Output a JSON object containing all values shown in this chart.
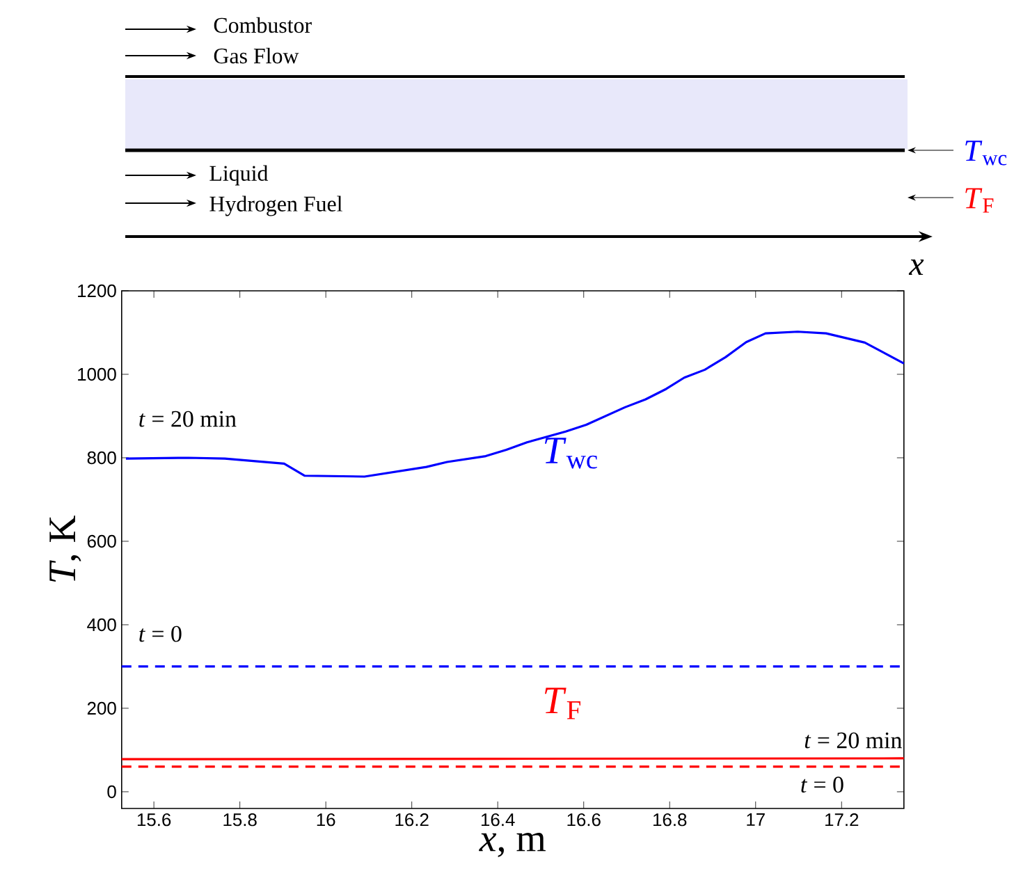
{
  "chart_data": {
    "type": "line",
    "xlabel": "*x*, m",
    "ylabel": "*T*, K",
    "xlim": [
      15.525,
      17.345
    ],
    "ylim": [
      -40,
      1200
    ],
    "xticks": [
      15.6,
      15.8,
      16,
      16.2,
      16.4,
      16.6,
      16.8,
      17,
      17.2
    ],
    "yticks": [
      0,
      200,
      400,
      600,
      800,
      1000,
      1200
    ],
    "series": [
      {
        "color": "#0000ff",
        "line_style": "solid",
        "x": [
          15.535,
          15.681,
          15.765,
          15.903,
          15.951,
          16.09,
          16.234,
          16.282,
          16.372,
          16.42,
          16.468,
          16.558,
          16.606,
          16.696,
          16.744,
          16.792,
          16.834,
          16.882,
          16.93,
          16.978,
          17.023,
          17.098,
          17.164,
          17.254,
          17.345
        ],
        "values": [
          798,
          800,
          798,
          786,
          757,
          755,
          778,
          790,
          804,
          819,
          837,
          863,
          879,
          921,
          940,
          965,
          992,
          1011,
          1041,
          1077,
          1098,
          1102,
          1098,
          1076,
          1026
        ]
      },
      {
        "color": "#0000ff",
        "line_style": "dashed",
        "x": [
          15.525,
          17.345
        ],
        "values": [
          300,
          300
        ]
      },
      {
        "color": "#ff0000",
        "line_style": "solid",
        "x": [
          15.525,
          16.4,
          17.345
        ],
        "values": [
          78,
          79,
          80
        ]
      },
      {
        "color": "#ff0000",
        "line_style": "dashed",
        "x": [
          15.525,
          17.345
        ],
        "values": [
          60,
          60
        ]
      }
    ],
    "annotations": [
      "Combustor",
      "Gas Flow",
      "Liquid",
      "Hydrogen Fuel",
      "*T*$_{wc}$",
      "*T*$_{F}$",
      "*x*",
      "*t* = 20 min",
      "*T*$_{wc}$",
      "*t* = 0",
      "*T*$_{F}$",
      "*t* = 20 min",
      "*t* = 0"
    ]
  }
}
